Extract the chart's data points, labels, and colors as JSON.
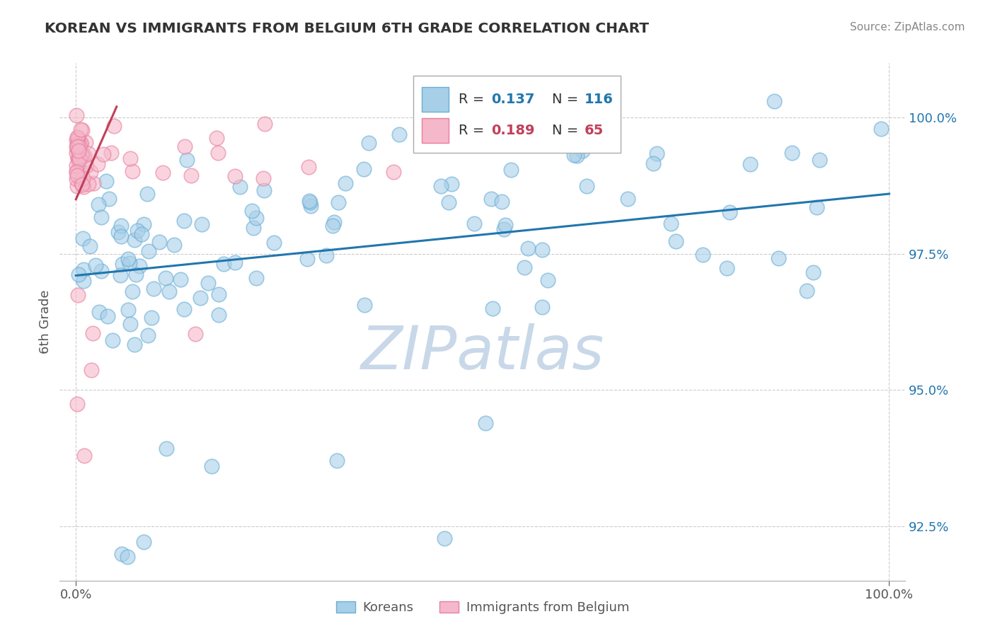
{
  "title": "KOREAN VS IMMIGRANTS FROM BELGIUM 6TH GRADE CORRELATION CHART",
  "source": "Source: ZipAtlas.com",
  "ylabel": "6th Grade",
  "xlim": [
    -2,
    102
  ],
  "ylim": [
    91.5,
    101.0
  ],
  "yticks": [
    92.5,
    95.0,
    97.5,
    100.0
  ],
  "ytick_labels": [
    "92.5%",
    "95.0%",
    "97.5%",
    "100.0%"
  ],
  "xtick_positions": [
    0,
    100
  ],
  "xtick_labels": [
    "0.0%",
    "100.0%"
  ],
  "legend_korean_r": "0.137",
  "legend_korean_n": "116",
  "legend_immigrant_r": "0.189",
  "legend_immigrant_n": "65",
  "korean_color": "#a8cfe8",
  "korean_edge_color": "#6aaed6",
  "immigrant_color": "#f5b8cb",
  "immigrant_edge_color": "#e87fa0",
  "korean_line_color": "#2176ae",
  "immigrant_line_color": "#c0405a",
  "watermark": "ZIPatlas",
  "watermark_color": "#c8d8e8",
  "background_color": "#ffffff",
  "grid_color": "#cccccc",
  "tick_color": "#2176ae",
  "title_color": "#333333",
  "source_color": "#888888",
  "ylabel_color": "#555555",
  "korean_line_x": [
    0,
    100
  ],
  "korean_line_y": [
    97.1,
    98.6
  ],
  "immigrant_line_x": [
    0,
    5
  ],
  "immigrant_line_y": [
    98.5,
    100.2
  ]
}
